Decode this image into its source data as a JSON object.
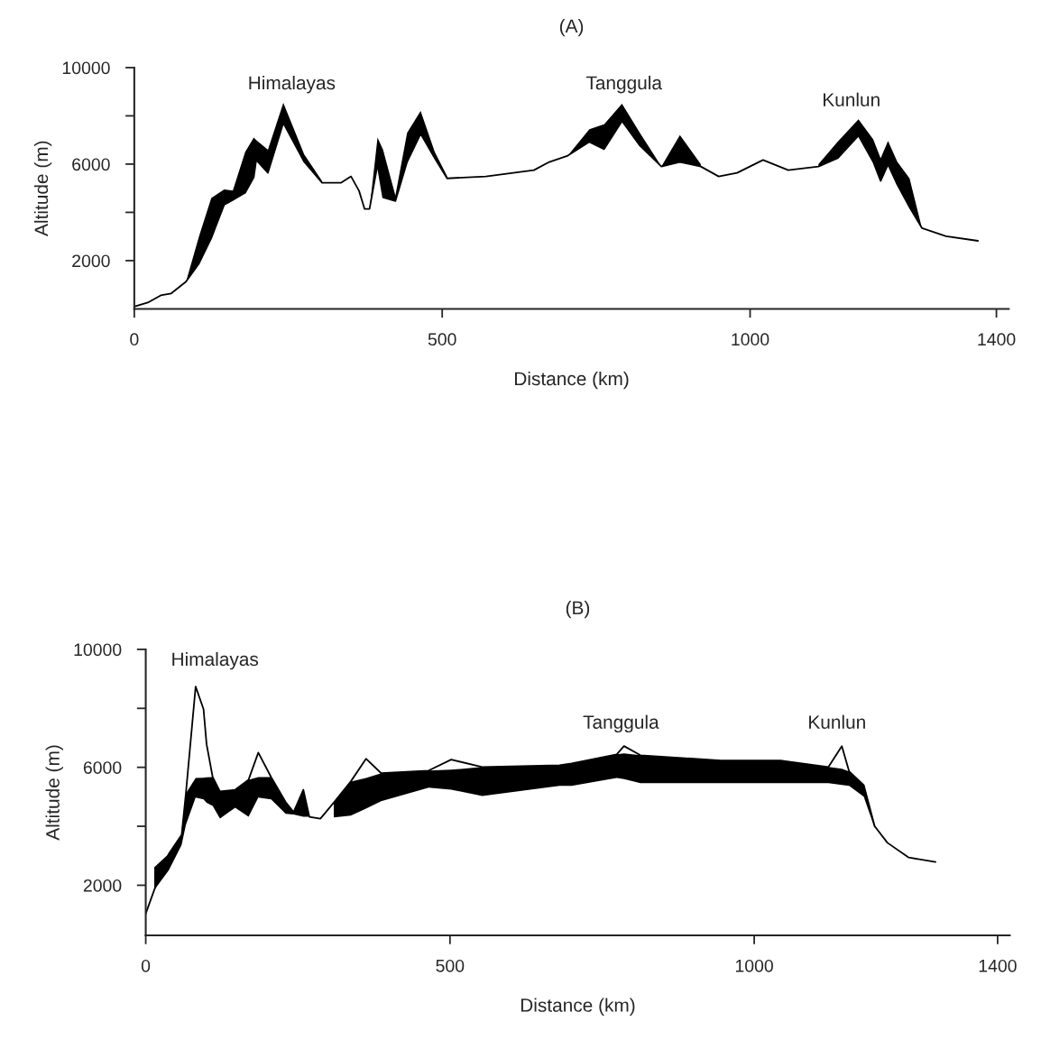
{
  "chart_data": [
    {
      "type": "line",
      "title": "(A)",
      "xlabel": "Distance (km)",
      "ylabel": "Altitude (m)",
      "xlim": [
        0,
        1420
      ],
      "ylim": [
        0,
        10000
      ],
      "xticks": [
        0,
        500,
        1000,
        1400
      ],
      "yticks": [
        {
          "value": 2000,
          "label": "2000"
        },
        {
          "value": 4000,
          "label": null
        },
        {
          "value": 6000,
          "label": "6000"
        },
        {
          "value": 8000,
          "label": null
        },
        {
          "value": 10000,
          "label": "10000"
        }
      ],
      "grid": false,
      "x": [
        0,
        22,
        43,
        60,
        84,
        105,
        125,
        146,
        160,
        180,
        194,
        198,
        217,
        242,
        276,
        305,
        336,
        352,
        365,
        374,
        382,
        395,
        404,
        424,
        443,
        465,
        488,
        508,
        571,
        649,
        674,
        704,
        739,
        763,
        792,
        821,
        856,
        886,
        920,
        949,
        979,
        1021,
        1062,
        1111,
        1142,
        1176,
        1200,
        1212,
        1224,
        1239,
        1259,
        1279,
        1318,
        1370
      ],
      "series": [
        {
          "color": "#000000",
          "values": [
            100,
            260,
            560,
            640,
            1130,
            1880,
            2930,
            4320,
            4510,
            4810,
            5450,
            6170,
            5640,
            7710,
            6090,
            5230,
            5230,
            5490,
            4890,
            4140,
            4140,
            5980,
            4620,
            4470,
            6090,
            7260,
            6240,
            5410,
            5490,
            5750,
            6090,
            6350,
            6920,
            6620,
            7780,
            6770,
            5900,
            6090,
            5900,
            5490,
            5640,
            6170,
            5750,
            5900,
            6240,
            7180,
            6090,
            5300,
            5980,
            5150,
            4210,
            3350,
            3010,
            2820
          ],
          "lower": [
            null,
            null,
            null,
            null,
            1130,
            1880,
            2930,
            4320,
            4510,
            4810,
            5450,
            6170,
            5640,
            7710,
            6090,
            5230,
            null,
            null,
            null,
            null,
            4140,
            5980,
            4620,
            4470,
            6090,
            7260,
            6240,
            5410,
            null,
            null,
            null,
            6350,
            6920,
            6620,
            7780,
            6770,
            5900,
            6090,
            5900,
            null,
            null,
            null,
            null,
            5900,
            6240,
            7180,
            6090,
            5300,
            5980,
            5150,
            4210,
            3350,
            null,
            null
          ],
          "upper": [
            null,
            null,
            null,
            null,
            1130,
            3000,
            4600,
            4950,
            4900,
            6500,
            7100,
            7000,
            6600,
            8540,
            6400,
            5300,
            null,
            null,
            null,
            null,
            4140,
            7100,
            6600,
            4700,
            7300,
            8200,
            6500,
            5500,
            null,
            null,
            null,
            6350,
            7450,
            7650,
            8500,
            7300,
            5900,
            7200,
            6000,
            null,
            null,
            null,
            null,
            6000,
            6920,
            7860,
            7030,
            6240,
            6960,
            6100,
            5410,
            3350,
            null,
            null
          ]
        }
      ],
      "annotations": [
        "Himalayas",
        "Tanggula",
        "Kunlun"
      ]
    },
    {
      "type": "line",
      "title": "(B)",
      "xlabel": "Distance (km)",
      "ylabel": "Altitude (m)",
      "xlim": [
        0,
        1420
      ],
      "ylim": [
        300,
        10000
      ],
      "xticks": [
        0,
        500,
        1000,
        1400
      ],
      "yticks": [
        {
          "value": 2000,
          "label": "2000"
        },
        {
          "value": 4000,
          "label": null
        },
        {
          "value": 6000,
          "label": "6000"
        },
        {
          "value": 8000,
          "label": null
        },
        {
          "value": 10000,
          "label": "10000"
        }
      ],
      "grid": false,
      "x": [
        0,
        14,
        38,
        59,
        66,
        82,
        95,
        100,
        110,
        122,
        147,
        169,
        185,
        206,
        230,
        243,
        259,
        269,
        287,
        309,
        337,
        362,
        387,
        465,
        502,
        553,
        680,
        700,
        774,
        786,
        813,
        945,
        1043,
        1122,
        1144,
        1156,
        1180,
        1198,
        1219,
        1254,
        1298
      ],
      "series": [
        {
          "color": "#000000",
          "values": [
            1040,
            1840,
            3070,
            3710,
            5120,
            8740,
            7970,
            6780,
            5670,
            5180,
            5240,
            5580,
            6500,
            5670,
            4820,
            4480,
            5240,
            4320,
            4260,
            4800,
            5520,
            6290,
            5800,
            5890,
            6260,
            6010,
            6070,
            6130,
            6440,
            6720,
            6410,
            6230,
            6230,
            6010,
            6720,
            5860,
            5400,
            4000,
            3440,
            2940,
            2790
          ],
          "lower": [
            null,
            1840,
            2510,
            3370,
            4050,
            4970,
            4910,
            4800,
            4690,
            4260,
            4630,
            4320,
            4970,
            4910,
            4420,
            4400,
            4320,
            4320,
            null,
            4300,
            4360,
            4600,
            4850,
            5310,
            5240,
            5030,
            5370,
            5370,
            5640,
            5600,
            5460,
            5460,
            5460,
            5460,
            5400,
            5370,
            5000,
            3930,
            null,
            null,
            null
          ],
          "upper": [
            null,
            2610,
            3070,
            3710,
            5120,
            5640,
            5650,
            5660,
            5670,
            5180,
            5240,
            5580,
            5670,
            5670,
            4820,
            4480,
            5240,
            4320,
            null,
            4800,
            5520,
            5640,
            5800,
            5890,
            5920,
            6010,
            6070,
            6130,
            6440,
            6470,
            6410,
            6230,
            6230,
            6010,
            5950,
            5860,
            5400,
            4000,
            null,
            null,
            null
          ]
        }
      ],
      "annotations": [
        "Himalayas",
        "Tanggula",
        "Kunlun"
      ]
    }
  ]
}
